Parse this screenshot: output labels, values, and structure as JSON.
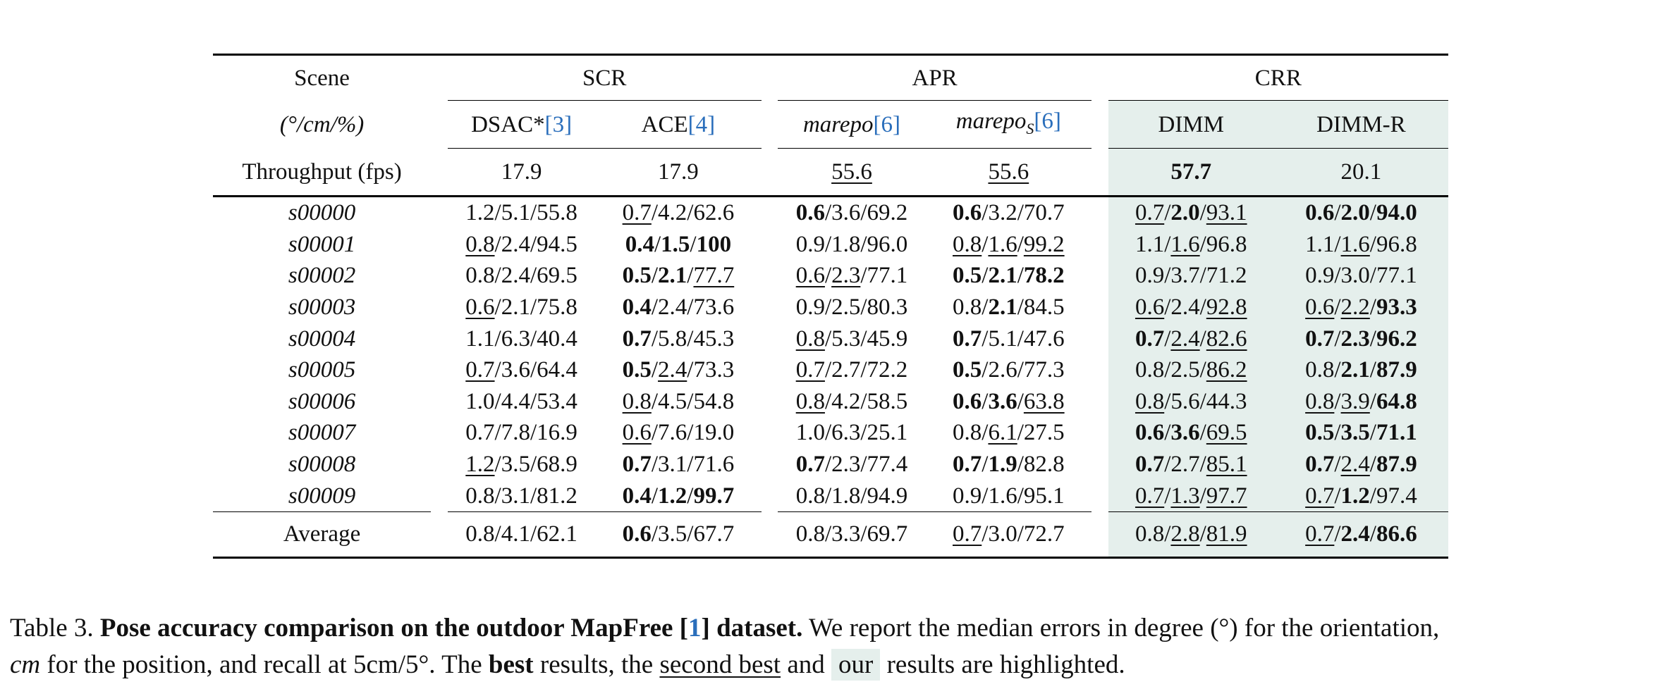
{
  "header": {
    "scene": "Scene",
    "units": "(°/cm/%)",
    "throughput_label": "Throughput (fps)",
    "groups": [
      "SCR",
      "APR",
      "CRR"
    ],
    "methods": [
      {
        "name": "DSAC*",
        "cite": "3"
      },
      {
        "name": "ACE",
        "cite": "4"
      },
      {
        "name": "marepo",
        "cite": "6"
      },
      {
        "name": "marepo",
        "subscript": "S",
        "cite": "6"
      },
      {
        "name": "DIMM"
      },
      {
        "name": "DIMM-R"
      }
    ],
    "throughput": [
      "17.9",
      "17.9",
      "55.6",
      "55.6",
      "57.7",
      "20.1"
    ]
  },
  "rows": [
    {
      "scene": "s00000",
      "cells": [
        [
          [
            "1.2",
            ""
          ],
          [
            "5.1",
            ""
          ],
          [
            "55.8",
            ""
          ]
        ],
        [
          [
            "0.7",
            "u"
          ],
          [
            "4.2",
            ""
          ],
          [
            "62.6",
            ""
          ]
        ],
        [
          [
            "0.6",
            "b"
          ],
          [
            "3.6",
            ""
          ],
          [
            "69.2",
            ""
          ]
        ],
        [
          [
            "0.6",
            "b"
          ],
          [
            "3.2",
            ""
          ],
          [
            "70.7",
            ""
          ]
        ],
        [
          [
            "0.7",
            "u"
          ],
          [
            "2.0",
            "b"
          ],
          [
            "93.1",
            "u"
          ]
        ],
        [
          [
            "0.6",
            "b"
          ],
          [
            "2.0",
            "b"
          ],
          [
            "94.0",
            "b"
          ]
        ]
      ]
    },
    {
      "scene": "s00001",
      "cells": [
        [
          [
            "0.8",
            "u"
          ],
          [
            "2.4",
            ""
          ],
          [
            "94.5",
            ""
          ]
        ],
        [
          [
            "0.4",
            "b"
          ],
          [
            "1.5",
            "b"
          ],
          [
            "100",
            "b"
          ]
        ],
        [
          [
            "0.9",
            ""
          ],
          [
            "1.8",
            ""
          ],
          [
            "96.0",
            ""
          ]
        ],
        [
          [
            "0.8",
            "u"
          ],
          [
            "1.6",
            "u"
          ],
          [
            "99.2",
            "u"
          ]
        ],
        [
          [
            "1.1",
            ""
          ],
          [
            "1.6",
            "u"
          ],
          [
            "96.8",
            ""
          ]
        ],
        [
          [
            "1.1",
            ""
          ],
          [
            "1.6",
            "u"
          ],
          [
            "96.8",
            ""
          ]
        ]
      ]
    },
    {
      "scene": "s00002",
      "cells": [
        [
          [
            "0.8",
            ""
          ],
          [
            "2.4",
            ""
          ],
          [
            "69.5",
            ""
          ]
        ],
        [
          [
            "0.5",
            "b"
          ],
          [
            "2.1",
            "b"
          ],
          [
            "77.7",
            "u"
          ]
        ],
        [
          [
            "0.6",
            "u"
          ],
          [
            "2.3",
            "u"
          ],
          [
            "77.1",
            ""
          ]
        ],
        [
          [
            "0.5",
            "b"
          ],
          [
            "2.1",
            "b"
          ],
          [
            "78.2",
            "b"
          ]
        ],
        [
          [
            "0.9",
            ""
          ],
          [
            "3.7",
            ""
          ],
          [
            "71.2",
            ""
          ]
        ],
        [
          [
            "0.9",
            ""
          ],
          [
            "3.0",
            ""
          ],
          [
            "77.1",
            ""
          ]
        ]
      ]
    },
    {
      "scene": "s00003",
      "cells": [
        [
          [
            "0.6",
            "u"
          ],
          [
            "2.1",
            ""
          ],
          [
            "75.8",
            ""
          ]
        ],
        [
          [
            "0.4",
            "b"
          ],
          [
            "2.4",
            ""
          ],
          [
            "73.6",
            ""
          ]
        ],
        [
          [
            "0.9",
            ""
          ],
          [
            "2.5",
            ""
          ],
          [
            "80.3",
            ""
          ]
        ],
        [
          [
            "0.8",
            ""
          ],
          [
            "2.1",
            "b"
          ],
          [
            "84.5",
            ""
          ]
        ],
        [
          [
            "0.6",
            "u"
          ],
          [
            "2.4",
            ""
          ],
          [
            "92.8",
            "u"
          ]
        ],
        [
          [
            "0.6",
            "u"
          ],
          [
            "2.2",
            "u"
          ],
          [
            "93.3",
            "b"
          ]
        ]
      ]
    },
    {
      "scene": "s00004",
      "cells": [
        [
          [
            "1.1",
            ""
          ],
          [
            "6.3",
            ""
          ],
          [
            "40.4",
            ""
          ]
        ],
        [
          [
            "0.7",
            "b"
          ],
          [
            "5.8",
            ""
          ],
          [
            "45.3",
            ""
          ]
        ],
        [
          [
            "0.8",
            "u"
          ],
          [
            "5.3",
            ""
          ],
          [
            "45.9",
            ""
          ]
        ],
        [
          [
            "0.7",
            "b"
          ],
          [
            "5.1",
            ""
          ],
          [
            "47.6",
            ""
          ]
        ],
        [
          [
            "0.7",
            "b"
          ],
          [
            "2.4",
            "u"
          ],
          [
            "82.6",
            "u"
          ]
        ],
        [
          [
            "0.7",
            "b"
          ],
          [
            "2.3",
            "b"
          ],
          [
            "96.2",
            "b"
          ]
        ]
      ]
    },
    {
      "scene": "s00005",
      "cells": [
        [
          [
            "0.7",
            "u"
          ],
          [
            "3.6",
            ""
          ],
          [
            "64.4",
            ""
          ]
        ],
        [
          [
            "0.5",
            "b"
          ],
          [
            "2.4",
            "u"
          ],
          [
            "73.3",
            ""
          ]
        ],
        [
          [
            "0.7",
            "u"
          ],
          [
            "2.7",
            ""
          ],
          [
            "72.2",
            ""
          ]
        ],
        [
          [
            "0.5",
            "b"
          ],
          [
            "2.6",
            ""
          ],
          [
            "77.3",
            ""
          ]
        ],
        [
          [
            "0.8",
            ""
          ],
          [
            "2.5",
            ""
          ],
          [
            "86.2",
            "u"
          ]
        ],
        [
          [
            "0.8",
            ""
          ],
          [
            "2.1",
            "b"
          ],
          [
            "87.9",
            "b"
          ]
        ]
      ]
    },
    {
      "scene": "s00006",
      "cells": [
        [
          [
            "1.0",
            ""
          ],
          [
            "4.4",
            ""
          ],
          [
            "53.4",
            ""
          ]
        ],
        [
          [
            "0.8",
            "u"
          ],
          [
            "4.5",
            ""
          ],
          [
            "54.8",
            ""
          ]
        ],
        [
          [
            "0.8",
            "u"
          ],
          [
            "4.2",
            ""
          ],
          [
            "58.5",
            ""
          ]
        ],
        [
          [
            "0.6",
            "b"
          ],
          [
            "3.6",
            "b"
          ],
          [
            "63.8",
            "u"
          ]
        ],
        [
          [
            "0.8",
            "u"
          ],
          [
            "5.6",
            ""
          ],
          [
            "44.3",
            ""
          ]
        ],
        [
          [
            "0.8",
            "u"
          ],
          [
            "3.9",
            "u"
          ],
          [
            "64.8",
            "b"
          ]
        ]
      ]
    },
    {
      "scene": "s00007",
      "cells": [
        [
          [
            "0.7",
            ""
          ],
          [
            "7.8",
            ""
          ],
          [
            "16.9",
            ""
          ]
        ],
        [
          [
            "0.6",
            "u"
          ],
          [
            "7.6",
            ""
          ],
          [
            "19.0",
            ""
          ]
        ],
        [
          [
            "1.0",
            ""
          ],
          [
            "6.3",
            ""
          ],
          [
            "25.1",
            ""
          ]
        ],
        [
          [
            "0.8",
            ""
          ],
          [
            "6.1",
            "u"
          ],
          [
            "27.5",
            ""
          ]
        ],
        [
          [
            "0.6",
            "b"
          ],
          [
            "3.6",
            "b"
          ],
          [
            "69.5",
            "u"
          ]
        ],
        [
          [
            "0.5",
            "b"
          ],
          [
            "3.5",
            "b"
          ],
          [
            "71.1",
            "b"
          ]
        ]
      ]
    },
    {
      "scene": "s00008",
      "cells": [
        [
          [
            "1.2",
            "u"
          ],
          [
            "3.5",
            ""
          ],
          [
            "68.9",
            ""
          ]
        ],
        [
          [
            "0.7",
            "b"
          ],
          [
            "3.1",
            ""
          ],
          [
            "71.6",
            ""
          ]
        ],
        [
          [
            "0.7",
            "b"
          ],
          [
            "2.3",
            ""
          ],
          [
            "77.4",
            ""
          ]
        ],
        [
          [
            "0.7",
            "b"
          ],
          [
            "1.9",
            "b"
          ],
          [
            "82.8",
            ""
          ]
        ],
        [
          [
            "0.7",
            "b"
          ],
          [
            "2.7",
            ""
          ],
          [
            "85.1",
            "u"
          ]
        ],
        [
          [
            "0.7",
            "b"
          ],
          [
            "2.4",
            "u"
          ],
          [
            "87.9",
            "b"
          ]
        ]
      ]
    },
    {
      "scene": "s00009",
      "cells": [
        [
          [
            "0.8",
            ""
          ],
          [
            "3.1",
            ""
          ],
          [
            "81.2",
            ""
          ]
        ],
        [
          [
            "0.4",
            "b"
          ],
          [
            "1.2",
            "b"
          ],
          [
            "99.7",
            "b"
          ]
        ],
        [
          [
            "0.8",
            ""
          ],
          [
            "1.8",
            ""
          ],
          [
            "94.9",
            ""
          ]
        ],
        [
          [
            "0.9",
            ""
          ],
          [
            "1.6",
            ""
          ],
          [
            "95.1",
            ""
          ]
        ],
        [
          [
            "0.7",
            "u"
          ],
          [
            "1.3",
            "u"
          ],
          [
            "97.7",
            "u"
          ]
        ],
        [
          [
            "0.7",
            "u"
          ],
          [
            "1.2",
            "b"
          ],
          [
            "97.4",
            ""
          ]
        ]
      ]
    }
  ],
  "average": {
    "label": "Average",
    "cells": [
      [
        [
          "0.8",
          ""
        ],
        [
          "4.1",
          ""
        ],
        [
          "62.1",
          ""
        ]
      ],
      [
        [
          "0.6",
          "b"
        ],
        [
          "3.5",
          ""
        ],
        [
          "67.7",
          ""
        ]
      ],
      [
        [
          "0.8",
          ""
        ],
        [
          "3.3",
          ""
        ],
        [
          "69.7",
          ""
        ]
      ],
      [
        [
          "0.7",
          "u"
        ],
        [
          "3.0",
          ""
        ],
        [
          "72.7",
          ""
        ]
      ],
      [
        [
          "0.8",
          ""
        ],
        [
          "2.8",
          "u"
        ],
        [
          "81.9",
          "u"
        ]
      ],
      [
        [
          "0.7",
          "u"
        ],
        [
          "2.4",
          "b"
        ],
        [
          "86.6",
          "b"
        ]
      ]
    ]
  },
  "caption": {
    "prefix": "Table 3. ",
    "bold_title_a": "Pose accuracy comparison on the outdoor MapFree [",
    "cite": "1",
    "bold_title_b": "] dataset.",
    "text1": " We report the median errors in degree (°) for the orientation,",
    "cm": "cm",
    "text2": " for the position, and recall at 5cm/5°. The ",
    "best": "best",
    "text3": " results, the ",
    "second_best": "second best",
    "text4": " and ",
    "our": "our",
    "text5": " results are highlighted."
  },
  "colors": {
    "highlight": "#e5efec",
    "citation": "#2a6ebb"
  }
}
